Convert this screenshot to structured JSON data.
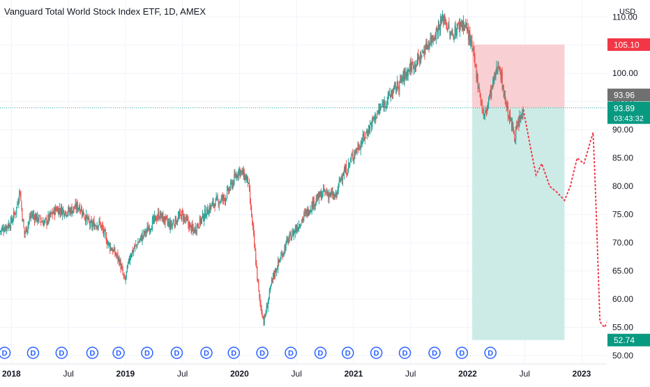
{
  "header": {
    "title": "Vanguard Total World Stock Index ETF, 1D, AMEX"
  },
  "colors": {
    "up": "#26a69a",
    "down": "#ef5350",
    "stop_zone": "#f7c8cb",
    "target_zone": "#c8e9e3",
    "projection": "#f23645",
    "dividend": "#2962ff",
    "price_line": "#26a69a",
    "grid": "#f0f3fa",
    "axis_text": "#131722"
  },
  "chart_data": {
    "type": "candlestick",
    "currency_label": "USD",
    "ylim": [
      48.5,
      113
    ],
    "y_ticks": [
      "50.00",
      "55.00",
      "60.00",
      "65.00",
      "70.00",
      "75.00",
      "80.00",
      "85.00",
      "90.00",
      "95.00",
      "100.00",
      "105.00",
      "110.00"
    ],
    "x_ticks": [
      {
        "label": "2018",
        "t": 0.0
      },
      {
        "label": "Jul",
        "t": 0.5
      },
      {
        "label": "2019",
        "t": 1.0
      },
      {
        "label": "Jul",
        "t": 1.5
      },
      {
        "label": "2020",
        "t": 2.0
      },
      {
        "label": "Jul",
        "t": 2.5
      },
      {
        "label": "2021",
        "t": 3.0
      },
      {
        "label": "Jul",
        "t": 3.5
      },
      {
        "label": "2022",
        "t": 4.0
      },
      {
        "label": "Jul",
        "t": 4.5
      },
      {
        "label": "2023",
        "t": 5.0
      }
    ],
    "x_range": [
      -0.1,
      5.22
    ],
    "price_path": [
      [
        -0.1,
        72
      ],
      [
        0.0,
        73.5
      ],
      [
        0.05,
        76
      ],
      [
        0.08,
        79.5
      ],
      [
        0.1,
        75
      ],
      [
        0.12,
        71.5
      ],
      [
        0.18,
        75
      ],
      [
        0.3,
        73.5
      ],
      [
        0.4,
        76
      ],
      [
        0.5,
        75.5
      ],
      [
        0.6,
        76.5
      ],
      [
        0.7,
        73
      ],
      [
        0.78,
        73.5
      ],
      [
        0.85,
        70
      ],
      [
        0.95,
        67
      ],
      [
        1.0,
        63
      ],
      [
        1.05,
        68
      ],
      [
        1.15,
        71
      ],
      [
        1.3,
        75
      ],
      [
        1.4,
        73
      ],
      [
        1.5,
        75
      ],
      [
        1.6,
        72
      ],
      [
        1.7,
        75
      ],
      [
        1.78,
        77
      ],
      [
        1.88,
        78
      ],
      [
        1.98,
        82
      ],
      [
        2.0,
        83
      ],
      [
        2.08,
        81
      ],
      [
        2.12,
        73
      ],
      [
        2.18,
        60
      ],
      [
        2.22,
        56
      ],
      [
        2.3,
        64
      ],
      [
        2.42,
        70
      ],
      [
        2.55,
        74
      ],
      [
        2.65,
        77
      ],
      [
        2.75,
        79
      ],
      [
        2.85,
        78
      ],
      [
        2.9,
        82
      ],
      [
        2.95,
        83
      ],
      [
        3.0,
        85.5
      ],
      [
        3.08,
        88
      ],
      [
        3.2,
        92.5
      ],
      [
        3.32,
        96
      ],
      [
        3.4,
        98
      ],
      [
        3.5,
        101
      ],
      [
        3.58,
        102.5
      ],
      [
        3.65,
        105
      ],
      [
        3.72,
        107
      ],
      [
        3.8,
        110
      ],
      [
        3.86,
        106.5
      ],
      [
        3.95,
        109
      ],
      [
        4.0,
        108
      ],
      [
        4.05,
        104
      ],
      [
        4.1,
        98
      ],
      [
        4.15,
        92
      ],
      [
        4.2,
        96
      ],
      [
        4.28,
        102
      ],
      [
        4.32,
        97
      ],
      [
        4.36,
        93
      ],
      [
        4.42,
        89
      ],
      [
        4.46,
        91.5
      ],
      [
        4.49,
        93
      ]
    ],
    "dividend_marker_label": "D",
    "dividend_markers_t": [
      -0.06,
      0.19,
      0.44,
      0.71,
      0.94,
      1.19,
      1.45,
      1.71,
      1.95,
      2.2,
      2.45,
      2.71,
      2.95,
      3.2,
      3.45,
      3.71,
      3.95,
      4.2
    ],
    "position": {
      "entry": 93.89,
      "stop": 105.1,
      "target": 52.74,
      "t_start": 4.04,
      "t_end": 4.85
    },
    "projection_path": [
      [
        4.49,
        93.5
      ],
      [
        4.55,
        87
      ],
      [
        4.6,
        82
      ],
      [
        4.65,
        84
      ],
      [
        4.72,
        80
      ],
      [
        4.78,
        79
      ],
      [
        4.85,
        77.5
      ],
      [
        4.9,
        80
      ],
      [
        4.96,
        85
      ],
      [
        5.02,
        84
      ],
      [
        5.1,
        89.5
      ],
      [
        5.12,
        80
      ],
      [
        5.16,
        56
      ],
      [
        5.2,
        55
      ],
      [
        5.24,
        56.5
      ]
    ],
    "price_labels": [
      {
        "text": "105.10",
        "value": 105.1,
        "style": "stop"
      },
      {
        "text": "93.96",
        "value": 93.96,
        "style": "last"
      },
      {
        "text": "93.89",
        "value": 93.89,
        "style": "current",
        "countdown": "03:43:32"
      },
      {
        "text": "52.74",
        "value": 52.74,
        "style": "target"
      }
    ]
  }
}
